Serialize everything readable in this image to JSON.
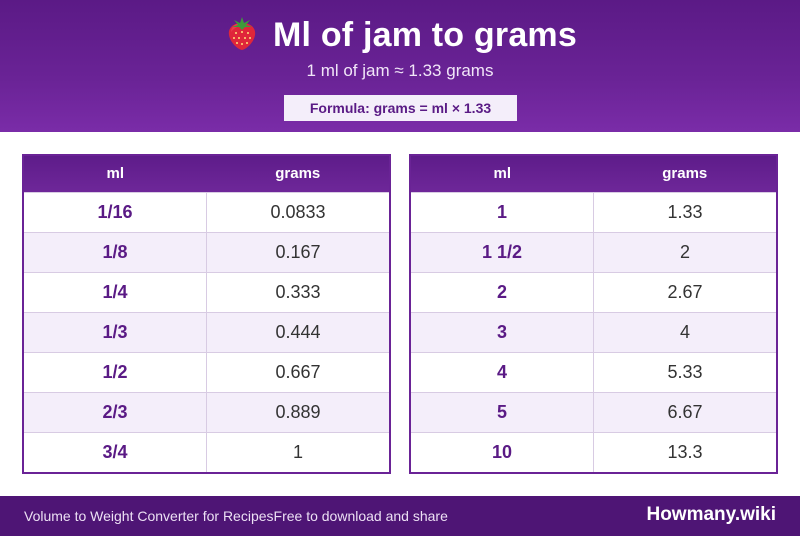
{
  "header": {
    "icon": "strawberry-icon",
    "title": "Ml of jam to grams",
    "subtitle": "1 ml of jam ≈ 1.33 grams",
    "formula": "Formula: grams = ml × 1.33"
  },
  "table_left": {
    "col_ml": "ml",
    "col_grams": "grams",
    "rows": [
      {
        "ml": "1/16",
        "grams": "0.0833"
      },
      {
        "ml": "1/8",
        "grams": "0.167"
      },
      {
        "ml": "1/4",
        "grams": "0.333"
      },
      {
        "ml": "1/3",
        "grams": "0.444"
      },
      {
        "ml": "1/2",
        "grams": "0.667"
      },
      {
        "ml": "2/3",
        "grams": "0.889"
      },
      {
        "ml": "3/4",
        "grams": "1"
      }
    ]
  },
  "table_right": {
    "col_ml": "ml",
    "col_grams": "grams",
    "rows": [
      {
        "ml": "1",
        "grams": "1.33"
      },
      {
        "ml": "1 1/2",
        "grams": "2"
      },
      {
        "ml": "2",
        "grams": "2.67"
      },
      {
        "ml": "3",
        "grams": "4"
      },
      {
        "ml": "4",
        "grams": "5.33"
      },
      {
        "ml": "5",
        "grams": "6.67"
      },
      {
        "ml": "10",
        "grams": "13.3"
      }
    ]
  },
  "footer": {
    "left_text": "Volume to Weight Converter for RecipesFree to download and share",
    "brand": "Howmany.wiki"
  },
  "colors": {
    "header_purple": "#6a2396",
    "accent_text": "#5a1a85",
    "row_alt": "#f4eefa",
    "footer": "#4e1575"
  }
}
